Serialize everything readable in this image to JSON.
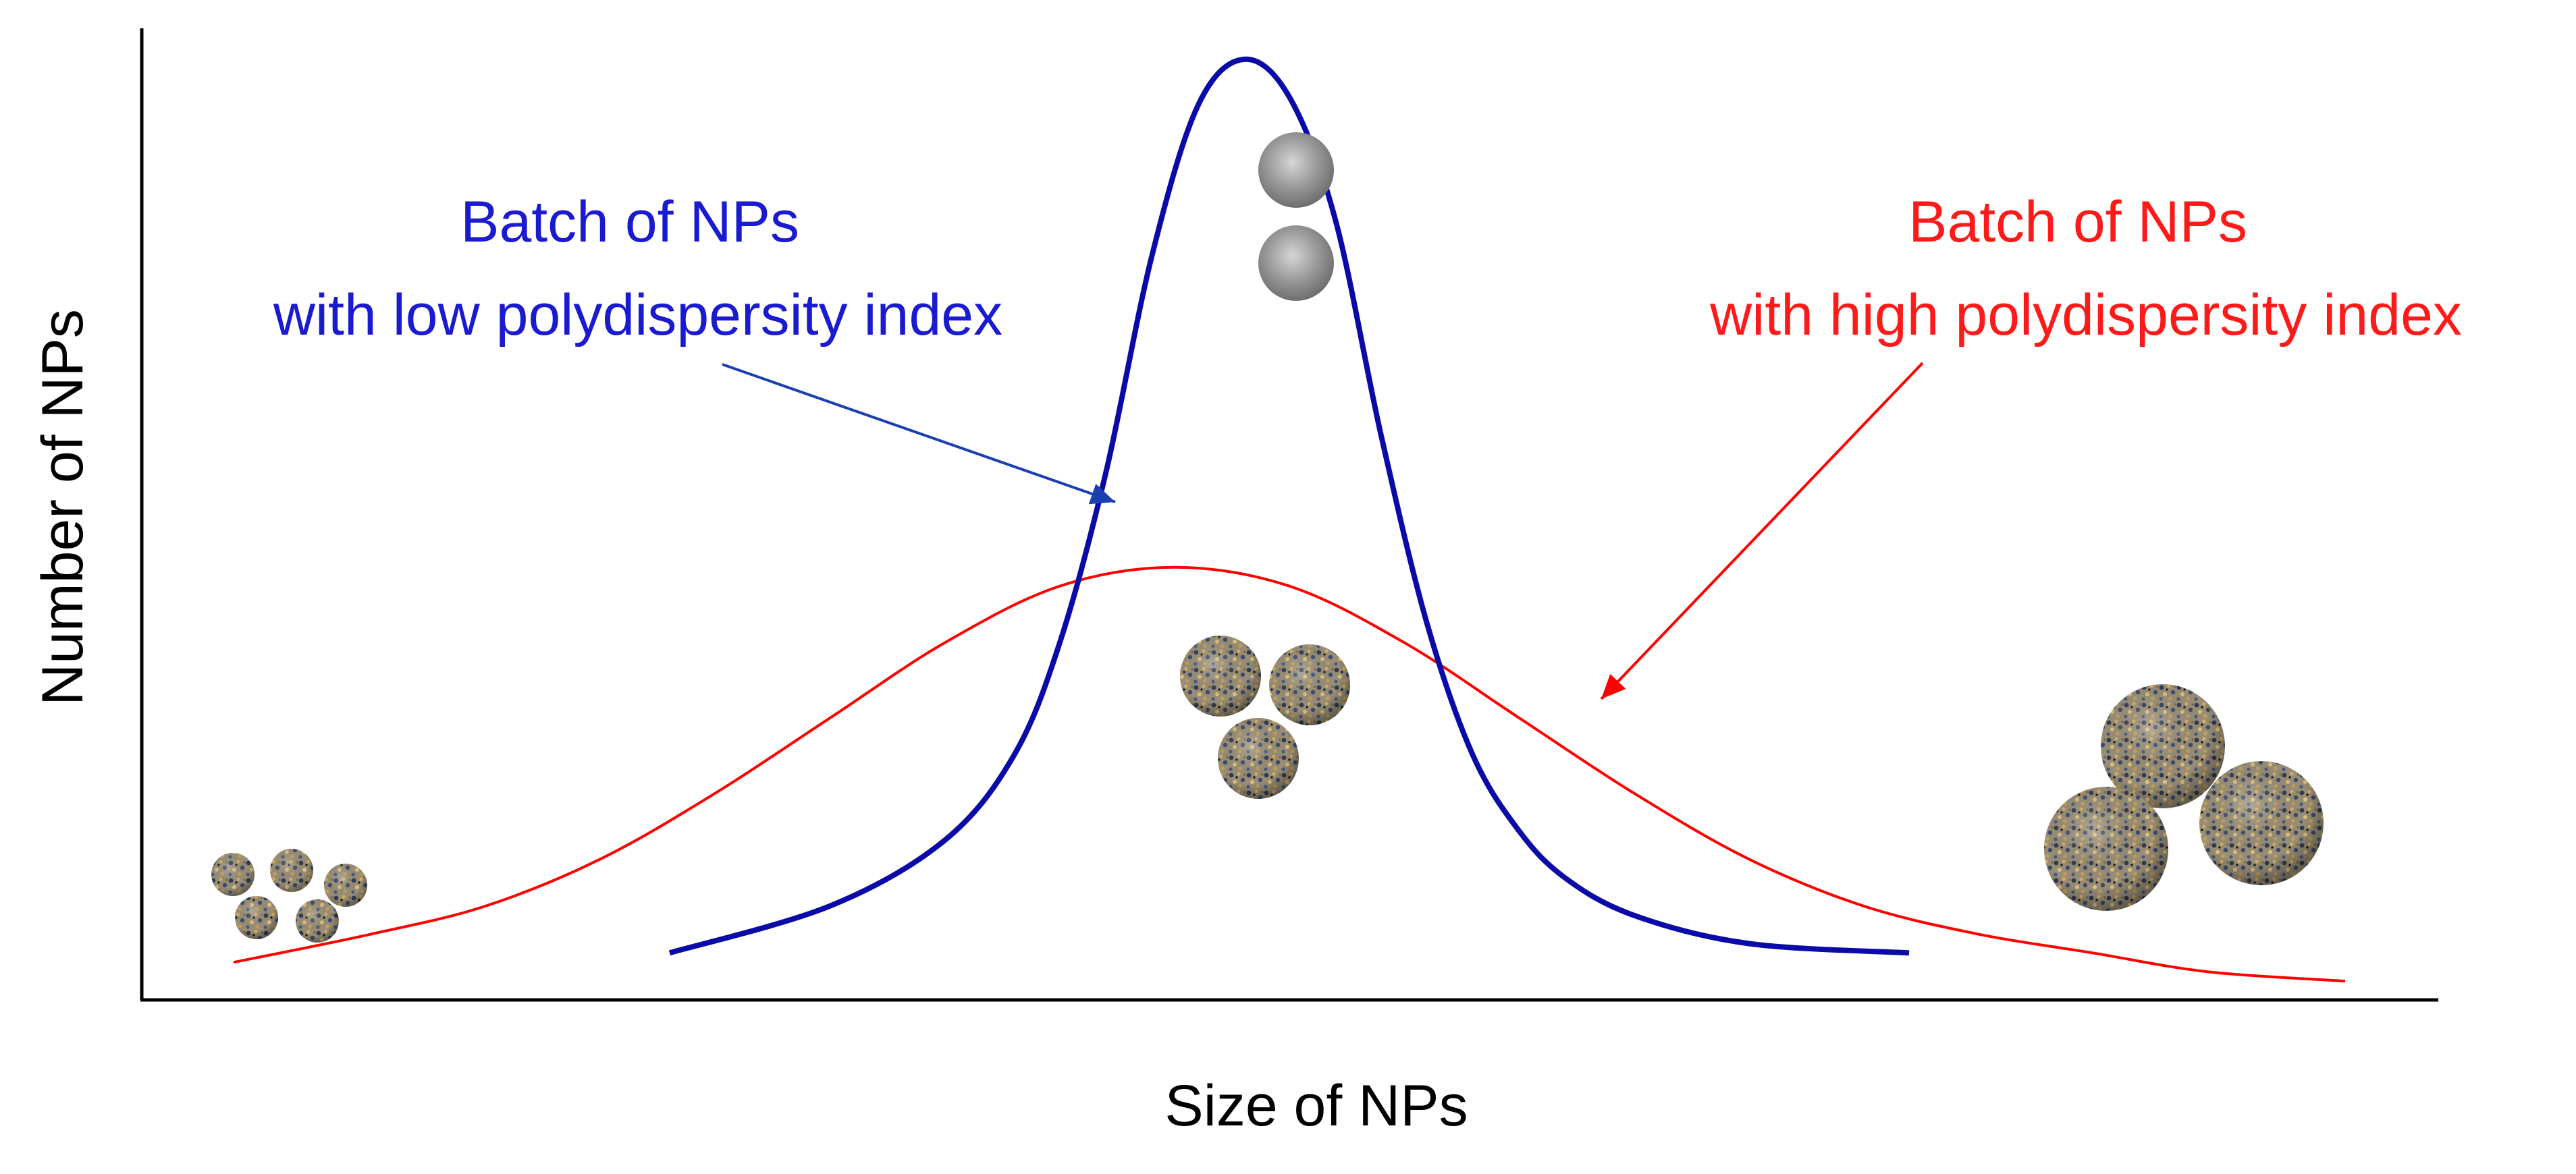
{
  "chart_data": {
    "type": "line",
    "xlabel": "Size of NPs",
    "ylabel": "Number of NPs",
    "grid": false,
    "legend": "none",
    "x": [
      0,
      5,
      10,
      15,
      20,
      25,
      30,
      35,
      40,
      45,
      50,
      55,
      60,
      65,
      70,
      75,
      80,
      85,
      90,
      95,
      100
    ],
    "xlim": [
      0,
      100
    ],
    "ylim": [
      0,
      100
    ],
    "series": [
      {
        "color": "#0a0aa8",
        "x": [
          23,
          30,
          35,
          38,
          40,
          42,
          44,
          46,
          48,
          50,
          52,
          54,
          56,
          58,
          60,
          62,
          65,
          70,
          77
        ],
        "values": [
          5,
          10,
          17,
          26,
          38,
          56,
          79,
          95,
          100,
          96,
          83,
          60,
          40,
          26,
          18,
          13,
          9,
          6,
          5
        ]
      },
      {
        "color": "#ff0000",
        "x": [
          4,
          10,
          15,
          20,
          25,
          30,
          35,
          40,
          45,
          50,
          55,
          60,
          65,
          70,
          75,
          80,
          85,
          90,
          96
        ],
        "values": [
          4,
          7,
          10,
          15,
          22,
          30,
          38,
          44,
          46,
          44,
          38,
          30,
          22,
          15,
          10,
          7,
          5,
          3,
          2
        ]
      }
    ],
    "annotations": [
      {
        "lines": [
          "Batch of NPs",
          "with low polydispersity index"
        ],
        "color": "#0a0aa8"
      },
      {
        "lines": [
          "Batch of NPs",
          "with high polydispersity index"
        ],
        "color": "#ff0000"
      }
    ]
  }
}
